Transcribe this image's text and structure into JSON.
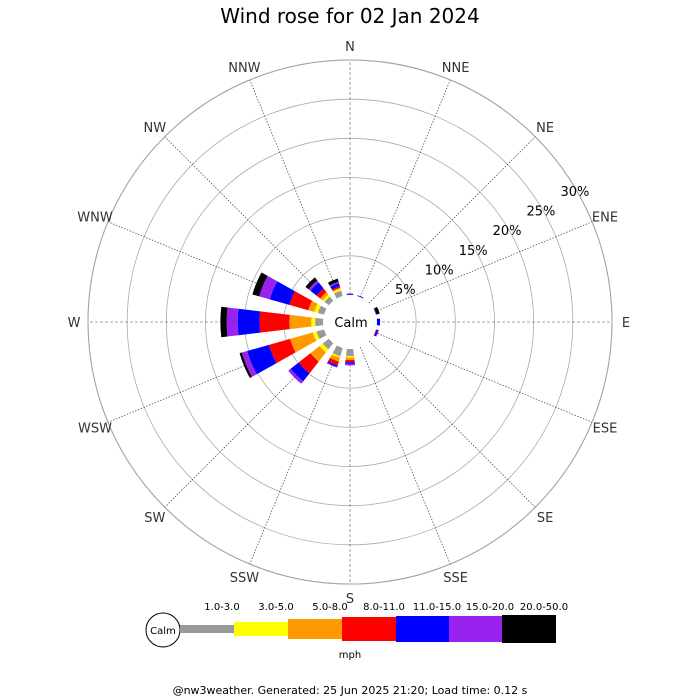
{
  "title": "Wind rose for 02 Jan 2024",
  "footer": "@nw3weather. Generated: 25 Jun 2025 21:20; Load time: 0.12 s",
  "calm_label": "Calm",
  "units": "mph",
  "chart_data": {
    "type": "windrose",
    "title": "Wind rose for 02 Jan 2024",
    "directions": [
      "N",
      "NNE",
      "NE",
      "ENE",
      "E",
      "ESE",
      "SE",
      "SSE",
      "S",
      "SSW",
      "SW",
      "WSW",
      "W",
      "WNW",
      "NW",
      "NNW"
    ],
    "ring_labels": [
      "5%",
      "10%",
      "15%",
      "20%",
      "25%",
      "30%"
    ],
    "ring_values": [
      5,
      10,
      15,
      20,
      25,
      30
    ],
    "speed_bins": [
      {
        "label": "1.0-3.0",
        "color": "#999999"
      },
      {
        "label": "3.0-5.0",
        "color": "#ffff00"
      },
      {
        "label": "5.0-8.0",
        "color": "#ff9900"
      },
      {
        "label": "8.0-11.0",
        "color": "#ff0000"
      },
      {
        "label": "11.0-15.0",
        "color": "#0000ff"
      },
      {
        "label": "15.0-20.0",
        "color": "#9922ee"
      },
      {
        "label": "20.0-50.0",
        "color": "#000000"
      }
    ],
    "frequencies": {
      "N": [
        0,
        0,
        0,
        0,
        0.1,
        0.1,
        0
      ],
      "NNE": [
        0,
        0,
        0,
        0,
        0.1,
        0,
        0
      ],
      "NNE_note": "",
      "NE": [
        0,
        0,
        0,
        0,
        0,
        0,
        0
      ],
      "ENE": [
        0,
        0,
        0,
        0,
        0.1,
        0,
        0.4
      ],
      "E": [
        0,
        0,
        0,
        0,
        0.4,
        0,
        0
      ],
      "ESE": [
        0,
        0,
        0,
        0.1,
        0.2,
        0.1,
        0
      ],
      "SE": [
        0,
        0,
        0,
        0,
        0,
        0,
        0
      ],
      "SSE": [
        0,
        0,
        0,
        0,
        0,
        0,
        0
      ],
      "S": [
        0.9,
        0.2,
        0.3,
        0.3,
        0.2,
        0.2,
        0
      ],
      "SSW": [
        1.1,
        0.2,
        0.5,
        0.5,
        0.2,
        0.1,
        0
      ],
      "SW": [
        1.0,
        0.5,
        1.5,
        1.9,
        1.3,
        0.4,
        0
      ],
      "WSW": [
        1.0,
        0.5,
        3.0,
        2.8,
        2.9,
        0.7,
        0.3
      ],
      "W": [
        1.0,
        0.5,
        2.8,
        3.8,
        2.8,
        1.4,
        0.8
      ],
      "WNW": [
        0.8,
        0.5,
        0.8,
        2.5,
        2.6,
        1.4,
        0.9
      ],
      "NW": [
        0.7,
        0.3,
        0.4,
        0.6,
        1.0,
        0.3,
        0.5
      ],
      "NNW": [
        0.7,
        0.3,
        0.1,
        0.2,
        0.4,
        0.2,
        0.4
      ]
    },
    "grid": true,
    "legend_placement": "bottom"
  }
}
